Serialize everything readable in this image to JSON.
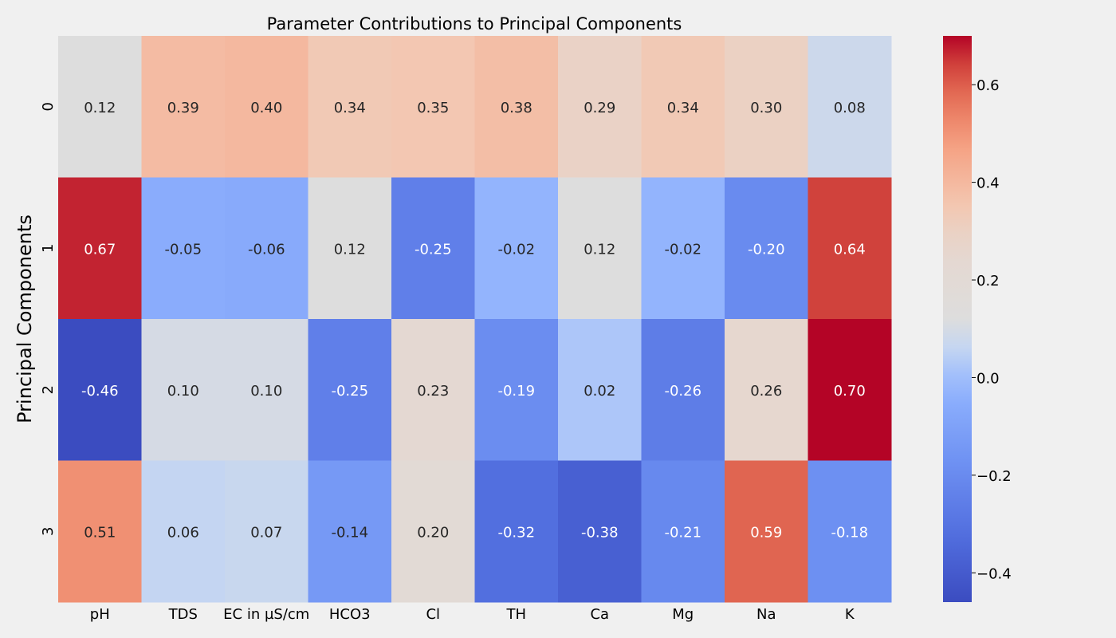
{
  "chart_data": {
    "type": "heatmap",
    "title": "Parameter Contributions to Principal Components",
    "xlabel": "",
    "ylabel": "Principal Components",
    "x_categories": [
      "pH",
      "TDS",
      "EC in µS/cm",
      "HCO3",
      "Cl",
      "TH",
      "Ca",
      "Mg",
      "Na",
      "K"
    ],
    "y_categories": [
      "0",
      "1",
      "2",
      "3"
    ],
    "values": [
      [
        0.12,
        0.39,
        0.4,
        0.34,
        0.35,
        0.38,
        0.29,
        0.34,
        0.3,
        0.08
      ],
      [
        0.67,
        -0.05,
        -0.06,
        0.12,
        -0.25,
        -0.02,
        0.12,
        -0.02,
        -0.2,
        0.64
      ],
      [
        -0.46,
        0.1,
        0.1,
        -0.25,
        0.23,
        -0.19,
        0.02,
        -0.26,
        0.26,
        0.7
      ],
      [
        0.51,
        0.06,
        0.07,
        -0.14,
        0.2,
        -0.32,
        -0.38,
        -0.21,
        0.59,
        -0.18
      ]
    ],
    "value_format": "0.00",
    "colormap": "coolwarm",
    "colorbar": {
      "vmin": -0.46,
      "vmax": 0.7,
      "ticks": [
        0.6,
        0.4,
        0.2,
        0.0,
        -0.2,
        -0.4
      ],
      "tick_labels": [
        "0.6",
        "0.4",
        "0.2",
        "0.0",
        "−0.2",
        "−0.4"
      ]
    },
    "grid": false,
    "background": "#f0f0f0"
  }
}
